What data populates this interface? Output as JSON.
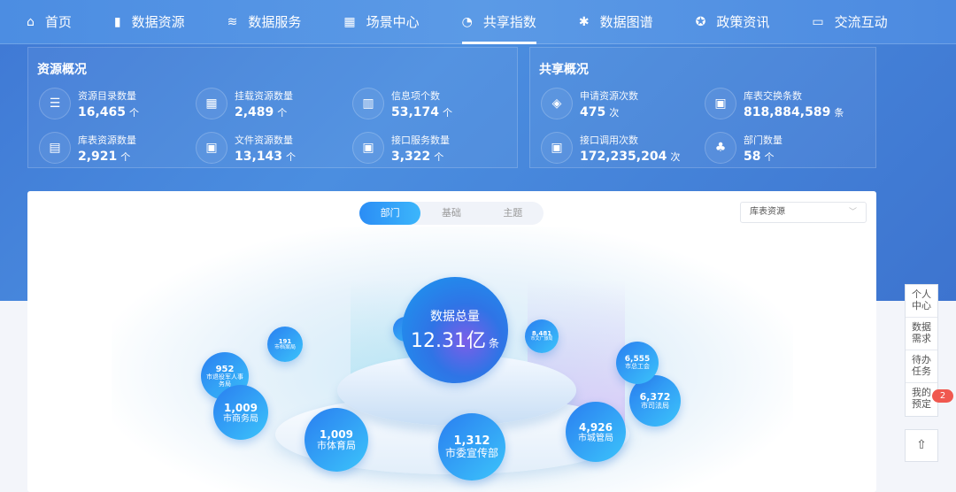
{
  "nav": [
    {
      "icon": "home-icon",
      "glyph": "⌂",
      "label": "首页"
    },
    {
      "icon": "bookmark-icon",
      "glyph": "▮",
      "label": "数据资源"
    },
    {
      "icon": "database-icon",
      "glyph": "≋",
      "label": "数据服务"
    },
    {
      "icon": "grid-icon",
      "glyph": "▦",
      "label": "场景中心"
    },
    {
      "icon": "pie-chart-icon",
      "glyph": "◔",
      "label": "共享指数",
      "active": true
    },
    {
      "icon": "asterisk-icon",
      "glyph": "✱",
      "label": "数据图谱"
    },
    {
      "icon": "badge-icon",
      "glyph": "✪",
      "label": "政策资讯"
    },
    {
      "icon": "chat-icon",
      "glyph": "▭",
      "label": "交流互动"
    }
  ],
  "resource": {
    "title": "资源概况",
    "stats": [
      {
        "icon": "list-icon",
        "glyph": "☰",
        "label": "资源目录数量",
        "value": "16,465",
        "unit": "个"
      },
      {
        "icon": "apps-icon",
        "glyph": "▦",
        "label": "挂载资源数量",
        "value": "2,489",
        "unit": "个"
      },
      {
        "icon": "bar-chart-icon",
        "glyph": "▥",
        "label": "信息项个数",
        "value": "53,174",
        "unit": "个"
      },
      {
        "icon": "table-icon",
        "glyph": "▤",
        "label": "库表资源数量",
        "value": "2,921",
        "unit": "个"
      },
      {
        "icon": "monitor-chart-icon",
        "glyph": "▣",
        "label": "文件资源数量",
        "value": "13,143",
        "unit": "个"
      },
      {
        "icon": "monitor-line-icon",
        "glyph": "▣",
        "label": "接口服务数量",
        "value": "3,322",
        "unit": "个"
      }
    ]
  },
  "share": {
    "title": "共享概况",
    "stats": [
      {
        "icon": "layers-icon",
        "glyph": "◈",
        "label": "申请资源次数",
        "value": "475",
        "unit": "次"
      },
      {
        "icon": "monitor-chart-icon",
        "glyph": "▣",
        "label": "库表交换条数",
        "value": "818,884,589",
        "unit": "条"
      },
      {
        "icon": "monitor-chart-icon",
        "glyph": "▣",
        "label": "接口调用次数",
        "value": "172,235,204",
        "unit": "次"
      },
      {
        "icon": "org-chart-icon",
        "glyph": "♣",
        "label": "部门数量",
        "value": "58",
        "unit": "个"
      }
    ]
  },
  "tabs": [
    {
      "label": "部门",
      "active": true
    },
    {
      "label": "基础"
    },
    {
      "label": "主题"
    }
  ],
  "select": {
    "value": "库表资源"
  },
  "total": {
    "label": "数据总量",
    "value": "12.31亿",
    "unit": "条"
  },
  "bubbles": [
    {
      "value": "191",
      "name": "市档案局"
    },
    {
      "value": "952",
      "name": "市退役军人事务局"
    },
    {
      "value": "1,009",
      "name": "市商务局"
    },
    {
      "value": "1,009",
      "name": "市体育局"
    },
    {
      "value": "1,312",
      "name": "市委宣传部"
    },
    {
      "value": "4,926",
      "name": "市城管局"
    },
    {
      "value": "6,372",
      "name": "市司法局"
    },
    {
      "value": "6,555",
      "name": "市总工会"
    },
    {
      "value": "8,481",
      "name": "市文广旅局"
    }
  ],
  "side": [
    {
      "label": "个人中心"
    },
    {
      "label": "数据需求"
    },
    {
      "label": "待办任务"
    },
    {
      "label": "我的预定",
      "badge": "2"
    }
  ],
  "back_top_icon": "arrow-up-icon"
}
